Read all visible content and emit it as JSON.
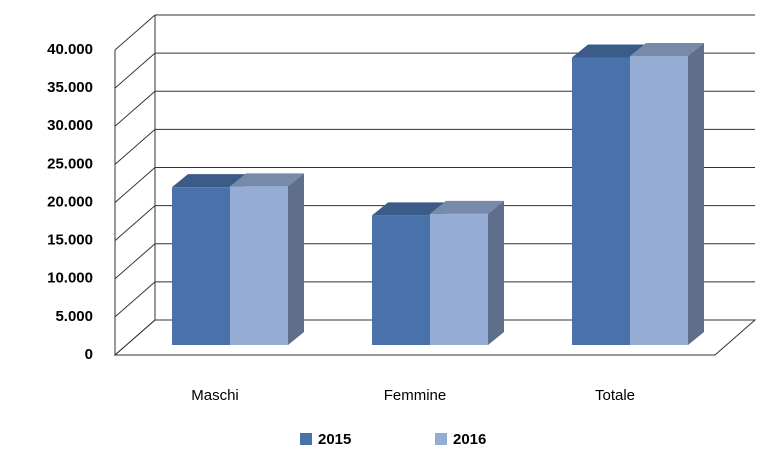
{
  "chart_data": {
    "type": "bar3d",
    "categories": [
      "Maschi",
      "Femmine",
      "Totale"
    ],
    "series": [
      {
        "name": "2015",
        "color": "#4a72aa",
        "values": [
          20700,
          17000,
          37700
        ]
      },
      {
        "name": "2016",
        "color": "#95acd4",
        "values": [
          20800,
          17200,
          37900
        ]
      }
    ],
    "ylim": [
      0,
      40000
    ],
    "yticks": [
      0,
      {
        "value": 5000,
        "label": "5.000"
      },
      {
        "value": 10000,
        "label": "10.000"
      },
      {
        "value": 15000,
        "label": "15.000"
      },
      {
        "value": 20000,
        "label": "20.000"
      },
      {
        "value": 25000,
        "label": "25.000"
      },
      {
        "value": 30000,
        "label": "30.000"
      },
      {
        "value": 35000,
        "label": "35.000"
      },
      {
        "value": 40000,
        "label": "40.000"
      }
    ],
    "grid": true,
    "legend": "bottom"
  }
}
